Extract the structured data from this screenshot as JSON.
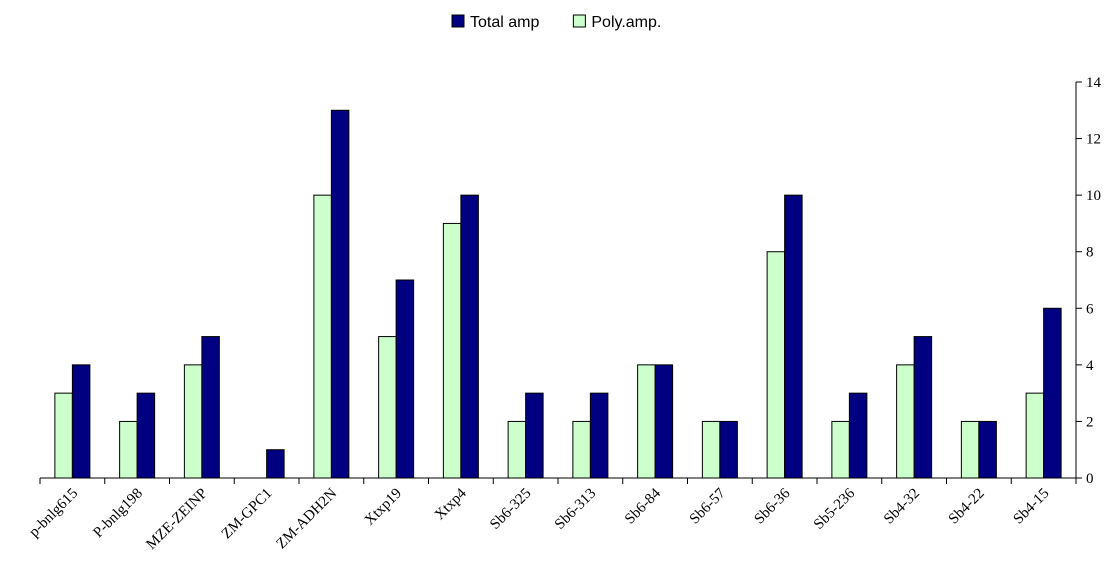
{
  "chart_data": {
    "type": "bar",
    "categories": [
      "p-bnlg615",
      "P-bnlg198",
      "MZE-ZEINP",
      "ZM-GPC1",
      "ZM-ADH2N",
      "Xtxp19",
      "Xtxp4",
      "Sb6-325",
      "Sb6-313",
      "Sb6-84",
      "Sb6-57",
      "Sb6-36",
      "Sb5-236",
      "Sb4-32",
      "Sb4-22",
      "Sb4-15"
    ],
    "series": [
      {
        "name": "Poly.amp.",
        "color": "#ccffcc",
        "values": [
          3,
          2,
          4,
          0,
          10,
          5,
          9,
          2,
          2,
          4,
          2,
          8,
          2,
          4,
          2,
          3
        ]
      },
      {
        "name": "Total amp",
        "color": "#000080",
        "values": [
          4,
          3,
          5,
          1,
          13,
          7,
          10,
          3,
          3,
          4,
          2,
          10,
          3,
          5,
          2,
          6
        ]
      }
    ],
    "legend_order": [
      "Total amp",
      "Poly.amp."
    ],
    "ylim": [
      0,
      14
    ],
    "yticks": [
      0,
      2,
      4,
      6,
      8,
      10,
      12,
      14
    ],
    "y_axis_position": "right",
    "legend_position": "top-center",
    "grid": false
  }
}
